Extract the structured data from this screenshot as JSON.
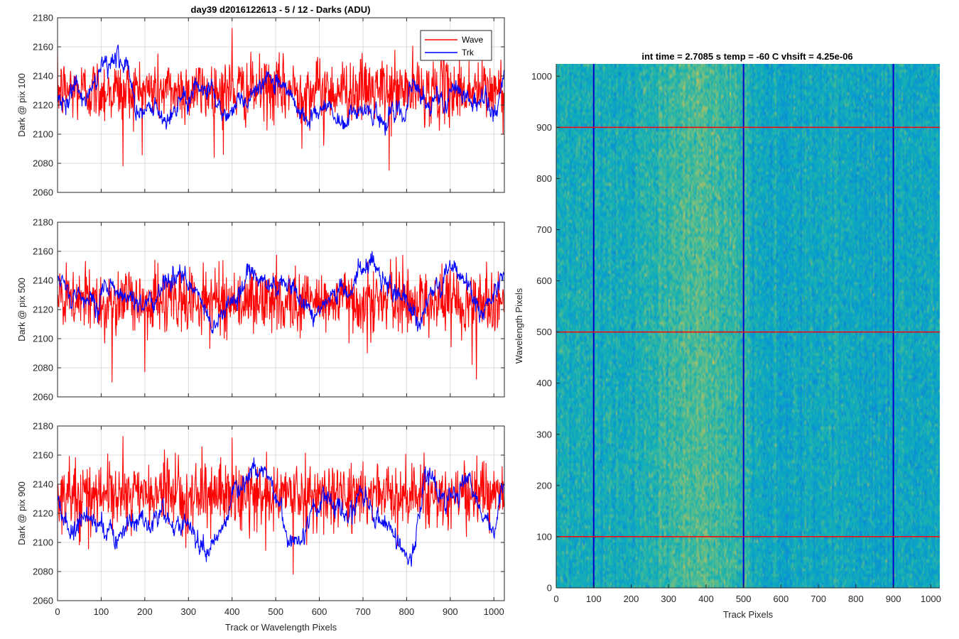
{
  "figure": {
    "left_title": "day39 d2016122613 - 5 / 12 - Darks (ADU)",
    "right_title": "int time = 2.7085 s    temp = -60 C    vhsift = 4.25e-06"
  },
  "chart_data": [
    {
      "type": "line",
      "id": "pix100",
      "xlabel": "",
      "ylabel": "Dark @ pix 100",
      "xlim": [
        0,
        1024
      ],
      "ylim": [
        2060,
        2180
      ],
      "xticks": [
        0,
        100,
        200,
        300,
        400,
        500,
        600,
        700,
        800,
        900,
        1000
      ],
      "yticks": [
        2060,
        2080,
        2100,
        2120,
        2140,
        2160,
        2180
      ],
      "grid": true,
      "legend": "top-right",
      "series": [
        {
          "name": "Wave",
          "color": "#ff0000",
          "mean": 2130,
          "noise": 11,
          "spikes": [
            [
              150,
              2078
            ],
            [
              380,
              2086
            ],
            [
              560,
              2090
            ],
            [
              760,
              2075
            ],
            [
              610,
              2092
            ],
            [
              400,
              2173
            ]
          ]
        },
        {
          "name": "Trk",
          "color": "#0000ff",
          "mean": 2126,
          "profile": [
            [
              0,
              2122
            ],
            [
              40,
              2130
            ],
            [
              70,
              2125
            ],
            [
              100,
              2150
            ],
            [
              140,
              2155
            ],
            [
              160,
              2140
            ],
            [
              180,
              2112
            ],
            [
              220,
              2118
            ],
            [
              260,
              2112
            ],
            [
              300,
              2122
            ],
            [
              340,
              2138
            ],
            [
              380,
              2115
            ],
            [
              420,
              2122
            ],
            [
              460,
              2132
            ],
            [
              500,
              2138
            ],
            [
              540,
              2122
            ],
            [
              580,
              2110
            ],
            [
              620,
              2120
            ],
            [
              660,
              2112
            ],
            [
              700,
              2120
            ],
            [
              740,
              2110
            ],
            [
              780,
              2118
            ],
            [
              820,
              2130
            ],
            [
              860,
              2120
            ],
            [
              880,
              2122
            ],
            [
              920,
              2130
            ],
            [
              960,
              2125
            ],
            [
              1000,
              2116
            ],
            [
              1024,
              2145
            ]
          ]
        }
      ]
    },
    {
      "type": "line",
      "id": "pix500",
      "xlabel": "",
      "ylabel": "Dark @ pix 500",
      "xlim": [
        0,
        1024
      ],
      "ylim": [
        2060,
        2180
      ],
      "xticks": [
        0,
        100,
        200,
        300,
        400,
        500,
        600,
        700,
        800,
        900,
        1000
      ],
      "yticks": [
        2060,
        2080,
        2100,
        2120,
        2140,
        2160,
        2180
      ],
      "grid": true,
      "series": [
        {
          "name": "Wave",
          "color": "#ff0000",
          "mean": 2126,
          "noise": 11,
          "spikes": [
            [
              125,
              2070
            ],
            [
              200,
              2077
            ],
            [
              960,
              2072
            ],
            [
              950,
              2082
            ],
            [
              710,
              2090
            ]
          ]
        },
        {
          "name": "Trk",
          "color": "#0000ff",
          "mean": 2132,
          "profile": [
            [
              0,
              2140
            ],
            [
              40,
              2125
            ],
            [
              80,
              2125
            ],
            [
              120,
              2140
            ],
            [
              160,
              2130
            ],
            [
              200,
              2120
            ],
            [
              240,
              2138
            ],
            [
              280,
              2142
            ],
            [
              320,
              2128
            ],
            [
              360,
              2108
            ],
            [
              400,
              2130
            ],
            [
              440,
              2140
            ],
            [
              480,
              2140
            ],
            [
              520,
              2135
            ],
            [
              560,
              2128
            ],
            [
              600,
              2118
            ],
            [
              640,
              2128
            ],
            [
              680,
              2140
            ],
            [
              710,
              2155
            ],
            [
              740,
              2142
            ],
            [
              780,
              2130
            ],
            [
              820,
              2112
            ],
            [
              860,
              2130
            ],
            [
              900,
              2148
            ],
            [
              940,
              2140
            ],
            [
              970,
              2115
            ],
            [
              1000,
              2130
            ],
            [
              1024,
              2150
            ]
          ]
        }
      ]
    },
    {
      "type": "line",
      "id": "pix900",
      "xlabel": "Track or Wavelength Pixels",
      "ylabel": "Dark @ pix 900",
      "xlim": [
        0,
        1024
      ],
      "ylim": [
        2060,
        2180
      ],
      "xticks": [
        0,
        100,
        200,
        300,
        400,
        500,
        600,
        700,
        800,
        900,
        1000
      ],
      "yticks": [
        2060,
        2080,
        2100,
        2120,
        2140,
        2160,
        2180
      ],
      "grid": true,
      "series": [
        {
          "name": "Wave",
          "color": "#ff0000",
          "mean": 2133,
          "noise": 11,
          "spikes": [
            [
              540,
              2078
            ],
            [
              400,
              2172
            ],
            [
              150,
              2173
            ],
            [
              50,
              2098
            ]
          ]
        },
        {
          "name": "Trk",
          "color": "#0000ff",
          "mean": 2118,
          "profile": [
            [
              0,
              2125
            ],
            [
              30,
              2108
            ],
            [
              60,
              2118
            ],
            [
              100,
              2112
            ],
            [
              130,
              2100
            ],
            [
              160,
              2110
            ],
            [
              200,
              2115
            ],
            [
              240,
              2120
            ],
            [
              270,
              2105
            ],
            [
              300,
              2112
            ],
            [
              330,
              2098
            ],
            [
              350,
              2085
            ],
            [
              370,
              2105
            ],
            [
              400,
              2130
            ],
            [
              440,
              2148
            ],
            [
              470,
              2155
            ],
            [
              500,
              2130
            ],
            [
              530,
              2100
            ],
            [
              550,
              2095
            ],
            [
              580,
              2120
            ],
            [
              620,
              2135
            ],
            [
              660,
              2118
            ],
            [
              700,
              2132
            ],
            [
              740,
              2118
            ],
            [
              780,
              2105
            ],
            [
              810,
              2090
            ],
            [
              840,
              2140
            ],
            [
              860,
              2150
            ],
            [
              880,
              2128
            ],
            [
              920,
              2135
            ],
            [
              940,
              2145
            ],
            [
              970,
              2120
            ],
            [
              1000,
              2110
            ],
            [
              1024,
              2132
            ]
          ]
        }
      ]
    },
    {
      "type": "heatmap",
      "id": "image",
      "xlabel": "Track Pixels",
      "ylabel": "Wavelength Pixels",
      "xlim": [
        0,
        1024
      ],
      "ylim": [
        0,
        1024
      ],
      "xticks": [
        0,
        100,
        200,
        300,
        400,
        500,
        600,
        700,
        800,
        900,
        1000
      ],
      "yticks": [
        0,
        100,
        200,
        300,
        400,
        500,
        600,
        700,
        800,
        900,
        1000
      ],
      "colormap": "parula",
      "bright_band_center": 380,
      "vertical_markers": [
        100,
        500,
        900
      ],
      "vertical_marker_color": "#0000cc",
      "horizontal_markers": [
        100,
        500,
        900
      ],
      "horizontal_marker_color": "#ff0000"
    }
  ]
}
